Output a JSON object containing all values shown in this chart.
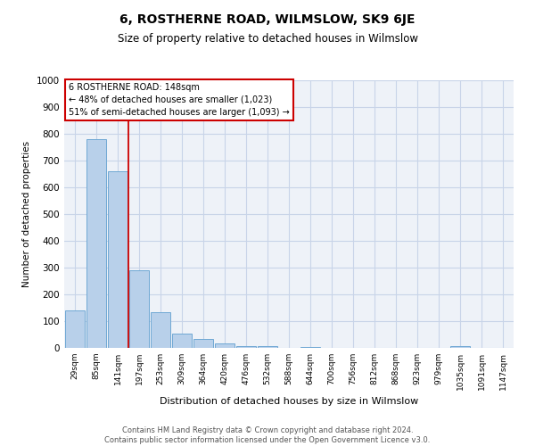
{
  "title": "6, ROSTHERNE ROAD, WILMSLOW, SK9 6JE",
  "subtitle": "Size of property relative to detached houses in Wilmslow",
  "xlabel": "Distribution of detached houses by size in Wilmslow",
  "ylabel": "Number of detached properties",
  "footer_line1": "Contains HM Land Registry data © Crown copyright and database right 2024.",
  "footer_line2": "Contains public sector information licensed under the Open Government Licence v3.0.",
  "bin_labels": [
    "29sqm",
    "85sqm",
    "141sqm",
    "197sqm",
    "253sqm",
    "309sqm",
    "364sqm",
    "420sqm",
    "476sqm",
    "532sqm",
    "588sqm",
    "644sqm",
    "700sqm",
    "756sqm",
    "812sqm",
    "868sqm",
    "923sqm",
    "979sqm",
    "1035sqm",
    "1091sqm",
    "1147sqm"
  ],
  "bar_values": [
    140,
    780,
    660,
    290,
    135,
    55,
    35,
    18,
    8,
    8,
    0,
    5,
    0,
    0,
    0,
    0,
    0,
    0,
    8,
    0,
    0
  ],
  "bar_color": "#b8d0ea",
  "bar_edge_color": "#6fa8d4",
  "ylim": [
    0,
    1000
  ],
  "yticks": [
    0,
    100,
    200,
    300,
    400,
    500,
    600,
    700,
    800,
    900,
    1000
  ],
  "vline_color": "#cc0000",
  "vline_pos": 2.5,
  "annotation_lines": [
    "6 ROSTHERNE ROAD: 148sqm",
    "← 48% of detached houses are smaller (1,023)",
    "51% of semi-detached houses are larger (1,093) →"
  ],
  "grid_color": "#c8d4e8",
  "background_color": "#eef2f8",
  "title_fontsize": 10,
  "subtitle_fontsize": 8.5
}
